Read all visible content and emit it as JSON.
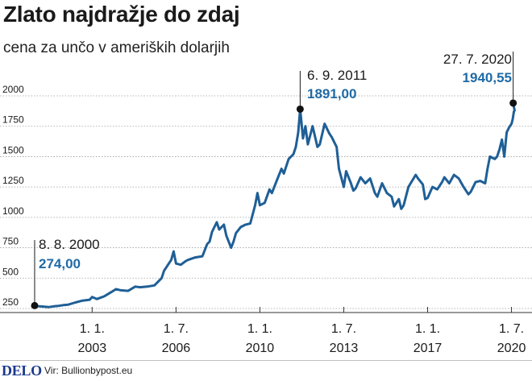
{
  "title": "Zlato najdražje do zdaj",
  "subtitle": "cena za unčo v ameriških dolarjih",
  "footer": {
    "logo": "DELO",
    "source": "Vir: Bullionbypost.eu"
  },
  "colors": {
    "line": "#1f5f96",
    "accent_text": "#1f6aa5",
    "grid": "#9e9e9e"
  },
  "chart_data": {
    "type": "line",
    "ylim": [
      250,
      2000
    ],
    "yticks": [
      250,
      500,
      750,
      1000,
      1250,
      1500,
      1750,
      2000
    ],
    "ytick_labels": [
      "250",
      "500",
      "750",
      "1000",
      "1250",
      "1500",
      "1750",
      "2000"
    ],
    "xlim": [
      2000.5,
      2020.75
    ],
    "xticks": [
      {
        "x": 2003.0,
        "day": "1. 1.",
        "year": "2003"
      },
      {
        "x": 2006.5,
        "day": "1. 7.",
        "year": "2006"
      },
      {
        "x": 2010.0,
        "day": "1. 1.",
        "year": "2010"
      },
      {
        "x": 2013.5,
        "day": "1. 7.",
        "year": "2013"
      },
      {
        "x": 2017.0,
        "day": "1. 1.",
        "year": "2017"
      },
      {
        "x": 2020.5,
        "day": "1. 7.",
        "year": "2020"
      }
    ],
    "series": [
      {
        "points": [
          [
            2000.6,
            274
          ],
          [
            2000.8,
            268
          ],
          [
            2001.0,
            265
          ],
          [
            2001.2,
            262
          ],
          [
            2001.4,
            268
          ],
          [
            2001.6,
            272
          ],
          [
            2001.8,
            278
          ],
          [
            2002.0,
            282
          ],
          [
            2002.3,
            300
          ],
          [
            2002.6,
            315
          ],
          [
            2002.9,
            322
          ],
          [
            2003.0,
            345
          ],
          [
            2003.2,
            328
          ],
          [
            2003.5,
            350
          ],
          [
            2003.8,
            385
          ],
          [
            2004.0,
            410
          ],
          [
            2004.2,
            400
          ],
          [
            2004.5,
            395
          ],
          [
            2004.8,
            430
          ],
          [
            2005.0,
            425
          ],
          [
            2005.3,
            430
          ],
          [
            2005.6,
            440
          ],
          [
            2005.9,
            500
          ],
          [
            2006.0,
            560
          ],
          [
            2006.3,
            650
          ],
          [
            2006.4,
            720
          ],
          [
            2006.5,
            620
          ],
          [
            2006.7,
            610
          ],
          [
            2006.9,
            640
          ],
          [
            2007.0,
            650
          ],
          [
            2007.3,
            670
          ],
          [
            2007.6,
            680
          ],
          [
            2007.8,
            780
          ],
          [
            2007.9,
            800
          ],
          [
            2008.0,
            880
          ],
          [
            2008.2,
            960
          ],
          [
            2008.3,
            900
          ],
          [
            2008.5,
            940
          ],
          [
            2008.6,
            850
          ],
          [
            2008.8,
            750
          ],
          [
            2008.9,
            800
          ],
          [
            2009.0,
            870
          ],
          [
            2009.2,
            920
          ],
          [
            2009.4,
            940
          ],
          [
            2009.6,
            950
          ],
          [
            2009.8,
            1100
          ],
          [
            2009.9,
            1200
          ],
          [
            2010.0,
            1100
          ],
          [
            2010.2,
            1120
          ],
          [
            2010.4,
            1230
          ],
          [
            2010.5,
            1200
          ],
          [
            2010.7,
            1300
          ],
          [
            2010.9,
            1400
          ],
          [
            2011.0,
            1360
          ],
          [
            2011.2,
            1480
          ],
          [
            2011.4,
            1520
          ],
          [
            2011.5,
            1580
          ],
          [
            2011.6,
            1700
          ],
          [
            2011.68,
            1891
          ],
          [
            2011.8,
            1650
          ],
          [
            2011.9,
            1750
          ],
          [
            2012.0,
            1600
          ],
          [
            2012.2,
            1750
          ],
          [
            2012.4,
            1580
          ],
          [
            2012.5,
            1600
          ],
          [
            2012.7,
            1770
          ],
          [
            2012.9,
            1690
          ],
          [
            2013.0,
            1660
          ],
          [
            2013.2,
            1580
          ],
          [
            2013.3,
            1400
          ],
          [
            2013.5,
            1250
          ],
          [
            2013.6,
            1380
          ],
          [
            2013.8,
            1280
          ],
          [
            2013.9,
            1220
          ],
          [
            2014.0,
            1240
          ],
          [
            2014.2,
            1330
          ],
          [
            2014.4,
            1280
          ],
          [
            2014.6,
            1320
          ],
          [
            2014.8,
            1200
          ],
          [
            2014.9,
            1170
          ],
          [
            2015.1,
            1280
          ],
          [
            2015.3,
            1200
          ],
          [
            2015.5,
            1170
          ],
          [
            2015.6,
            1090
          ],
          [
            2015.8,
            1150
          ],
          [
            2015.9,
            1070
          ],
          [
            2016.0,
            1100
          ],
          [
            2016.2,
            1250
          ],
          [
            2016.5,
            1350
          ],
          [
            2016.6,
            1320
          ],
          [
            2016.8,
            1270
          ],
          [
            2016.9,
            1150
          ],
          [
            2017.0,
            1160
          ],
          [
            2017.2,
            1250
          ],
          [
            2017.4,
            1230
          ],
          [
            2017.6,
            1290
          ],
          [
            2017.7,
            1330
          ],
          [
            2017.9,
            1280
          ],
          [
            2018.1,
            1350
          ],
          [
            2018.3,
            1320
          ],
          [
            2018.5,
            1250
          ],
          [
            2018.7,
            1190
          ],
          [
            2018.8,
            1210
          ],
          [
            2019.0,
            1290
          ],
          [
            2019.2,
            1300
          ],
          [
            2019.4,
            1280
          ],
          [
            2019.5,
            1400
          ],
          [
            2019.6,
            1500
          ],
          [
            2019.8,
            1480
          ],
          [
            2019.9,
            1500
          ],
          [
            2020.0,
            1560
          ],
          [
            2020.1,
            1640
          ],
          [
            2020.2,
            1500
          ],
          [
            2020.3,
            1700
          ],
          [
            2020.4,
            1740
          ],
          [
            2020.5,
            1770
          ],
          [
            2020.55,
            1810
          ],
          [
            2020.6,
            1870
          ],
          [
            2020.63,
            1880
          ],
          [
            2020.57,
            1940.55
          ]
        ]
      }
    ],
    "annotations": [
      {
        "date": "8. 8. 2000",
        "value": "274,00",
        "x": 2000.6,
        "y": 274
      },
      {
        "date": "6. 9. 2011",
        "value": "1891,00",
        "x": 2011.68,
        "y": 1891
      },
      {
        "date": "27. 7. 2020",
        "value": "1940,55",
        "x": 2020.57,
        "y": 1940.55
      }
    ]
  }
}
